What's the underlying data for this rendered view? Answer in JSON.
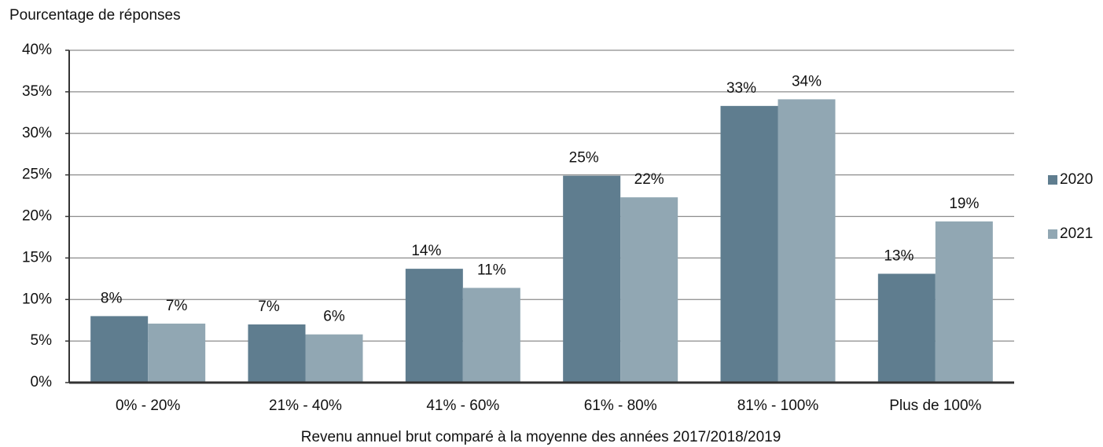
{
  "chart_data": {
    "type": "bar",
    "y_axis_label": "Pourcentage de réponses",
    "x_axis_label": "Revenu annuel brut comparé à la moyenne des années 2017/2018/2019",
    "categories": [
      "0% - 20%",
      "21% - 40%",
      "41% - 60%",
      "61% - 80%",
      "81% - 100%",
      "Plus de 100%"
    ],
    "series": [
      {
        "name": "2020",
        "color": "#5f7d8f",
        "values": [
          8.0,
          7.0,
          13.7,
          24.9,
          33.3,
          13.1
        ],
        "value_labels": [
          "8%",
          "7%",
          "14%",
          "25%",
          "33%",
          "13%"
        ]
      },
      {
        "name": "2021",
        "color": "#91a7b3",
        "values": [
          7.1,
          5.8,
          11.4,
          22.3,
          34.1,
          19.4
        ],
        "value_labels": [
          "7%",
          "6%",
          "11%",
          "22%",
          "34%",
          "19%"
        ]
      }
    ],
    "ylim": [
      0,
      40
    ],
    "yticks": [
      {
        "value": 0,
        "label": "0%"
      },
      {
        "value": 5,
        "label": "5%"
      },
      {
        "value": 10,
        "label": "10%"
      },
      {
        "value": 15,
        "label": "15%"
      },
      {
        "value": 20,
        "label": "20%"
      },
      {
        "value": 25,
        "label": "25%"
      },
      {
        "value": 30,
        "label": "30%"
      },
      {
        "value": 35,
        "label": "35%"
      },
      {
        "value": 40,
        "label": "40%"
      }
    ],
    "grid": true,
    "legend": "right"
  }
}
